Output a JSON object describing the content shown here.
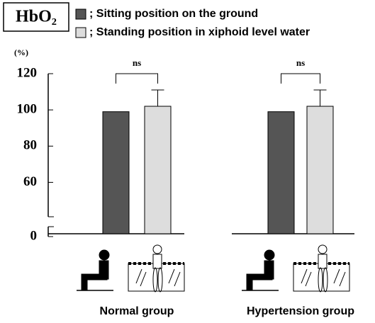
{
  "chart_data": {
    "type": "bar",
    "title": "HbO₂",
    "y_label": "(%)",
    "categories": [
      "Normal group",
      "Hypertension group"
    ],
    "series": [
      {
        "name": "; Sitting position on the ground",
        "color": "#555555",
        "values": [
          99,
          99
        ]
      },
      {
        "name": "; Standing position in xiphoid level water",
        "color": "#dddddd",
        "values": [
          102,
          102
        ],
        "errors": [
          9,
          9
        ]
      }
    ],
    "annotations": [
      "ns",
      "ns"
    ],
    "ylim": [
      0,
      120
    ],
    "y_break": [
      0,
      50
    ],
    "yticks": [
      0,
      60,
      80,
      100,
      120
    ],
    "grid": false
  }
}
